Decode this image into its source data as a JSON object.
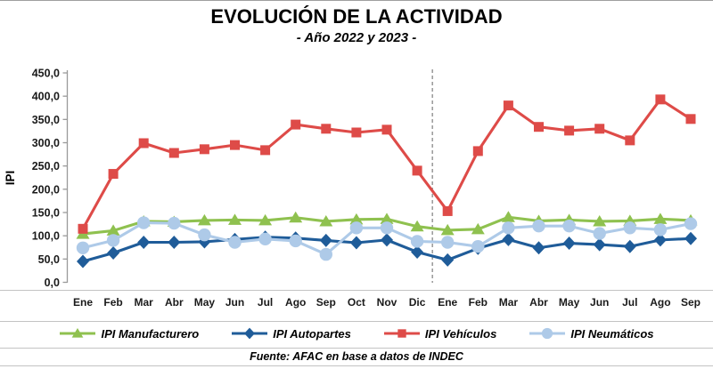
{
  "title": "EVOLUCIÓN DE LA ACTIVIDAD",
  "subtitle": "- Año 2022 y 2023 -",
  "footer": "Fuente: AFAC en base a datos de INDEC",
  "chart_data": {
    "type": "line",
    "title": "EVOLUCIÓN DE LA ACTIVIDAD",
    "subtitle": "- Año 2022 y 2023 -",
    "ylabel": "IPI",
    "ylim": [
      0,
      450
    ],
    "y_tick_step": 50,
    "y_tick_labels": [
      "450,0",
      "400,0",
      "350,0",
      "300,0",
      "250,0",
      "200,0",
      "150,0",
      "100,0",
      "50,0",
      "0,0"
    ],
    "grid": false,
    "legend_position": "bottom",
    "separator_after_index": 11,
    "separator_style": "dashed-gray-vertical",
    "axis_color": "#9a9a9a",
    "categories": [
      "Ene",
      "Feb",
      "Mar",
      "Abr",
      "May",
      "Jun",
      "Jul",
      "Ago",
      "Sep",
      "Oct",
      "Nov",
      "Dic",
      "Ene",
      "Feb",
      "Mar",
      "Abr",
      "May",
      "Jun",
      "Jul",
      "Ago",
      "Sep"
    ],
    "series": [
      {
        "name": "IPI Manufacturero",
        "marker": "triangle",
        "color": "#8fc14f",
        "values": [
          104,
          111,
          131,
          130,
          133,
          134,
          133,
          139,
          131,
          135,
          136,
          120,
          112,
          114,
          140,
          132,
          134,
          131,
          132,
          136,
          133
        ]
      },
      {
        "name": "IPI Autopartes",
        "marker": "diamond",
        "color": "#1f5c99",
        "values": [
          45,
          63,
          86,
          86,
          87,
          92,
          97,
          95,
          90,
          85,
          91,
          65,
          48,
          73,
          92,
          74,
          84,
          81,
          77,
          91,
          94
        ]
      },
      {
        "name": "IPI Vehículos",
        "marker": "square",
        "color": "#de4b48",
        "values": [
          115,
          233,
          299,
          278,
          286,
          295,
          284,
          339,
          330,
          322,
          328,
          240,
          153,
          282,
          380,
          334,
          326,
          330,
          305,
          393,
          351
        ]
      },
      {
        "name": "IPI Neumáticos",
        "marker": "circle",
        "color": "#aecae8",
        "values": [
          74,
          90,
          128,
          127,
          102,
          86,
          93,
          89,
          60,
          117,
          117,
          88,
          86,
          77,
          117,
          121,
          121,
          105,
          117,
          113,
          126
        ]
      }
    ]
  }
}
